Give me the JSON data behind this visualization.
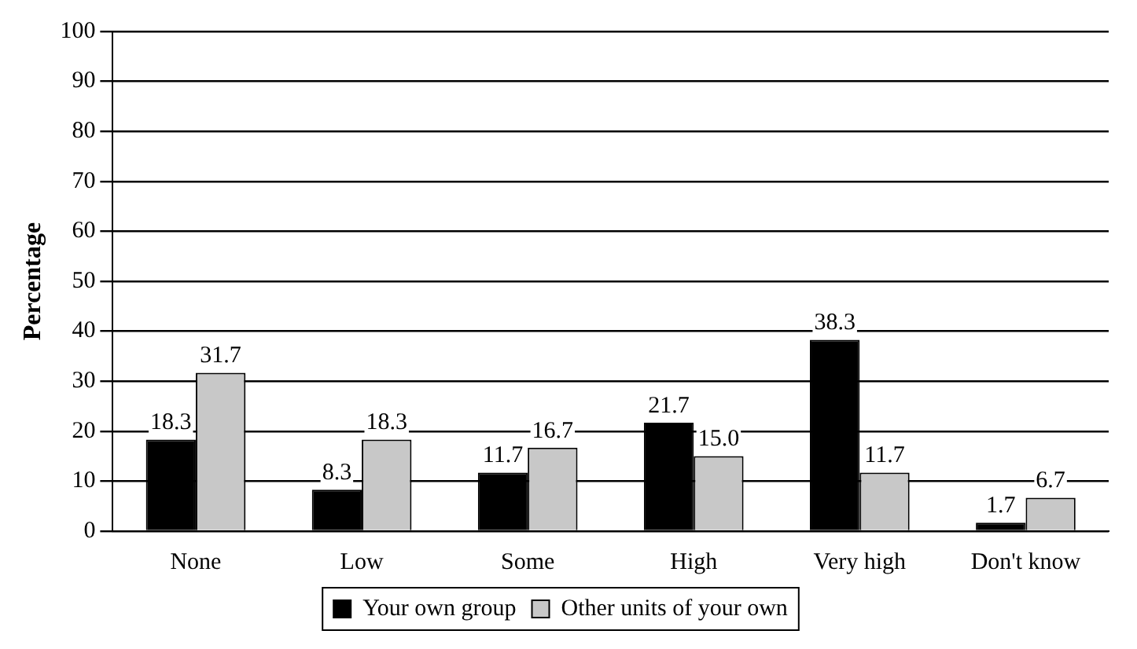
{
  "chart_data": {
    "type": "bar",
    "ylabel": "Percentage",
    "categories": [
      "None",
      "Low",
      "Some",
      "High",
      "Very high",
      "Don't know"
    ],
    "series": [
      {
        "name": "Your own group",
        "color": "#000000",
        "values": [
          18.3,
          8.3,
          11.7,
          21.7,
          38.3,
          1.7
        ],
        "value_labels": [
          "18.3",
          "8.3",
          "11.7",
          "21.7",
          "38.3",
          "1.7"
        ]
      },
      {
        "name": "Other units of your own",
        "color": "#c8c8c8",
        "values": [
          31.7,
          18.3,
          16.7,
          15.0,
          11.7,
          6.7
        ],
        "value_labels": [
          "31.7",
          "18.3",
          "16.7",
          "15.0",
          "11.7",
          "6.7"
        ]
      }
    ],
    "ylim": [
      0,
      100
    ],
    "yticks": [
      0,
      10,
      20,
      30,
      40,
      50,
      60,
      70,
      80,
      90,
      100
    ],
    "grid": "y",
    "legend": "bottom"
  }
}
